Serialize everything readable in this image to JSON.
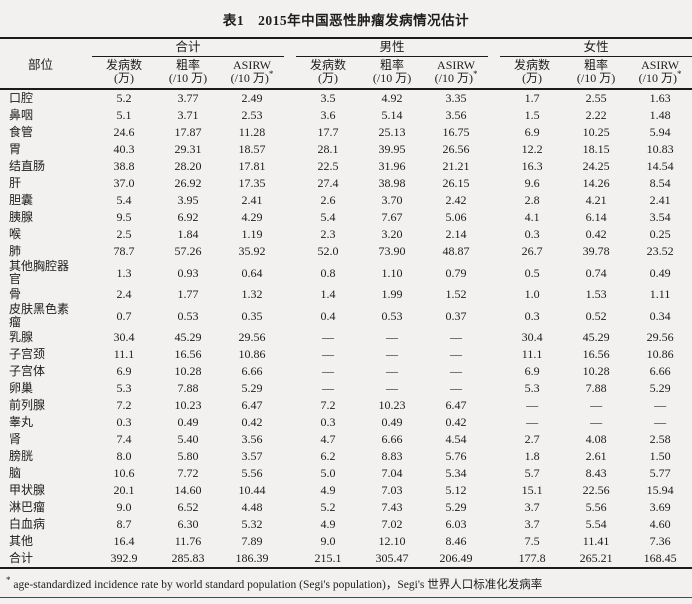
{
  "page": {
    "title": "表1　2015年中国恶性肿瘤发病情况估计"
  },
  "table": {
    "site_header": "部位",
    "groups": [
      "合计",
      "男性",
      "女性"
    ],
    "subheaders": {
      "incidence": {
        "line1": "发病数",
        "line2": "(万)"
      },
      "crude": {
        "line1": "粗率",
        "line2": "(/10 万)"
      },
      "asirw": {
        "line1": "ASIRW",
        "line2": "(/10 万)",
        "sup": "*"
      }
    },
    "rows": [
      {
        "site": "口腔",
        "values": [
          "5.2",
          "3.77",
          "2.49",
          "3.5",
          "4.92",
          "3.35",
          "1.7",
          "2.55",
          "1.63"
        ]
      },
      {
        "site": "鼻咽",
        "values": [
          "5.1",
          "3.71",
          "2.53",
          "3.6",
          "5.14",
          "3.56",
          "1.5",
          "2.22",
          "1.48"
        ]
      },
      {
        "site": "食管",
        "values": [
          "24.6",
          "17.87",
          "11.28",
          "17.7",
          "25.13",
          "16.75",
          "6.9",
          "10.25",
          "5.94"
        ]
      },
      {
        "site": "胃",
        "values": [
          "40.3",
          "29.31",
          "18.57",
          "28.1",
          "39.95",
          "26.56",
          "12.2",
          "18.15",
          "10.83"
        ]
      },
      {
        "site": "结直肠",
        "values": [
          "38.8",
          "28.20",
          "17.81",
          "22.5",
          "31.96",
          "21.21",
          "16.3",
          "24.25",
          "14.54"
        ]
      },
      {
        "site": "肝",
        "values": [
          "37.0",
          "26.92",
          "17.35",
          "27.4",
          "38.98",
          "26.15",
          "9.6",
          "14.26",
          "8.54"
        ]
      },
      {
        "site": "胆囊",
        "values": [
          "5.4",
          "3.95",
          "2.41",
          "2.6",
          "3.70",
          "2.42",
          "2.8",
          "4.21",
          "2.41"
        ]
      },
      {
        "site": "胰腺",
        "values": [
          "9.5",
          "6.92",
          "4.29",
          "5.4",
          "7.67",
          "5.06",
          "4.1",
          "6.14",
          "3.54"
        ]
      },
      {
        "site": "喉",
        "values": [
          "2.5",
          "1.84",
          "1.19",
          "2.3",
          "3.20",
          "2.14",
          "0.3",
          "0.42",
          "0.25"
        ]
      },
      {
        "site": "肺",
        "values": [
          "78.7",
          "57.26",
          "35.92",
          "52.0",
          "73.90",
          "48.87",
          "26.7",
          "39.78",
          "23.52"
        ]
      },
      {
        "site": "其他胸腔器官",
        "values": [
          "1.3",
          "0.93",
          "0.64",
          "0.8",
          "1.10",
          "0.79",
          "0.5",
          "0.74",
          "0.49"
        ]
      },
      {
        "site": "骨",
        "values": [
          "2.4",
          "1.77",
          "1.32",
          "1.4",
          "1.99",
          "1.52",
          "1.0",
          "1.53",
          "1.11"
        ]
      },
      {
        "site": "皮肤黑色素瘤",
        "values": [
          "0.7",
          "0.53",
          "0.35",
          "0.4",
          "0.53",
          "0.37",
          "0.3",
          "0.52",
          "0.34"
        ]
      },
      {
        "site": "乳腺",
        "values": [
          "30.4",
          "45.29",
          "29.56",
          "—",
          "—",
          "—",
          "30.4",
          "45.29",
          "29.56"
        ]
      },
      {
        "site": "子宫颈",
        "values": [
          "11.1",
          "16.56",
          "10.86",
          "—",
          "—",
          "—",
          "11.1",
          "16.56",
          "10.86"
        ]
      },
      {
        "site": "子宫体",
        "values": [
          "6.9",
          "10.28",
          "6.66",
          "—",
          "—",
          "—",
          "6.9",
          "10.28",
          "6.66"
        ]
      },
      {
        "site": "卵巢",
        "values": [
          "5.3",
          "7.88",
          "5.29",
          "—",
          "—",
          "—",
          "5.3",
          "7.88",
          "5.29"
        ]
      },
      {
        "site": "前列腺",
        "values": [
          "7.2",
          "10.23",
          "6.47",
          "7.2",
          "10.23",
          "6.47",
          "—",
          "—",
          "—"
        ]
      },
      {
        "site": "睾丸",
        "values": [
          "0.3",
          "0.49",
          "0.42",
          "0.3",
          "0.49",
          "0.42",
          "—",
          "—",
          "—"
        ]
      },
      {
        "site": "肾",
        "values": [
          "7.4",
          "5.40",
          "3.56",
          "4.7",
          "6.66",
          "4.54",
          "2.7",
          "4.08",
          "2.58"
        ]
      },
      {
        "site": "膀胱",
        "values": [
          "8.0",
          "5.80",
          "3.57",
          "6.2",
          "8.83",
          "5.76",
          "1.8",
          "2.61",
          "1.50"
        ]
      },
      {
        "site": "脑",
        "values": [
          "10.6",
          "7.72",
          "5.56",
          "5.0",
          "7.04",
          "5.34",
          "5.7",
          "8.43",
          "5.77"
        ]
      },
      {
        "site": "甲状腺",
        "values": [
          "20.1",
          "14.60",
          "10.44",
          "4.9",
          "7.03",
          "5.12",
          "15.1",
          "22.56",
          "15.94"
        ]
      },
      {
        "site": "淋巴瘤",
        "values": [
          "9.0",
          "6.52",
          "4.48",
          "5.2",
          "7.43",
          "5.29",
          "3.7",
          "5.56",
          "3.69"
        ]
      },
      {
        "site": "白血病",
        "values": [
          "8.7",
          "6.30",
          "5.32",
          "4.9",
          "7.02",
          "6.03",
          "3.7",
          "5.54",
          "4.60"
        ]
      },
      {
        "site": "其他",
        "values": [
          "16.4",
          "11.76",
          "7.89",
          "9.0",
          "12.10",
          "8.46",
          "7.5",
          "11.41",
          "7.36"
        ]
      },
      {
        "site": "合计",
        "values": [
          "392.9",
          "285.83",
          "186.39",
          "215.1",
          "305.47",
          "206.49",
          "177.8",
          "265.21",
          "168.45"
        ]
      }
    ]
  },
  "footnote": {
    "sup": "*",
    "text": " age-standardized incidence rate by world standard population (Segi's population)，Segi's 世界人口标准化发病率"
  }
}
